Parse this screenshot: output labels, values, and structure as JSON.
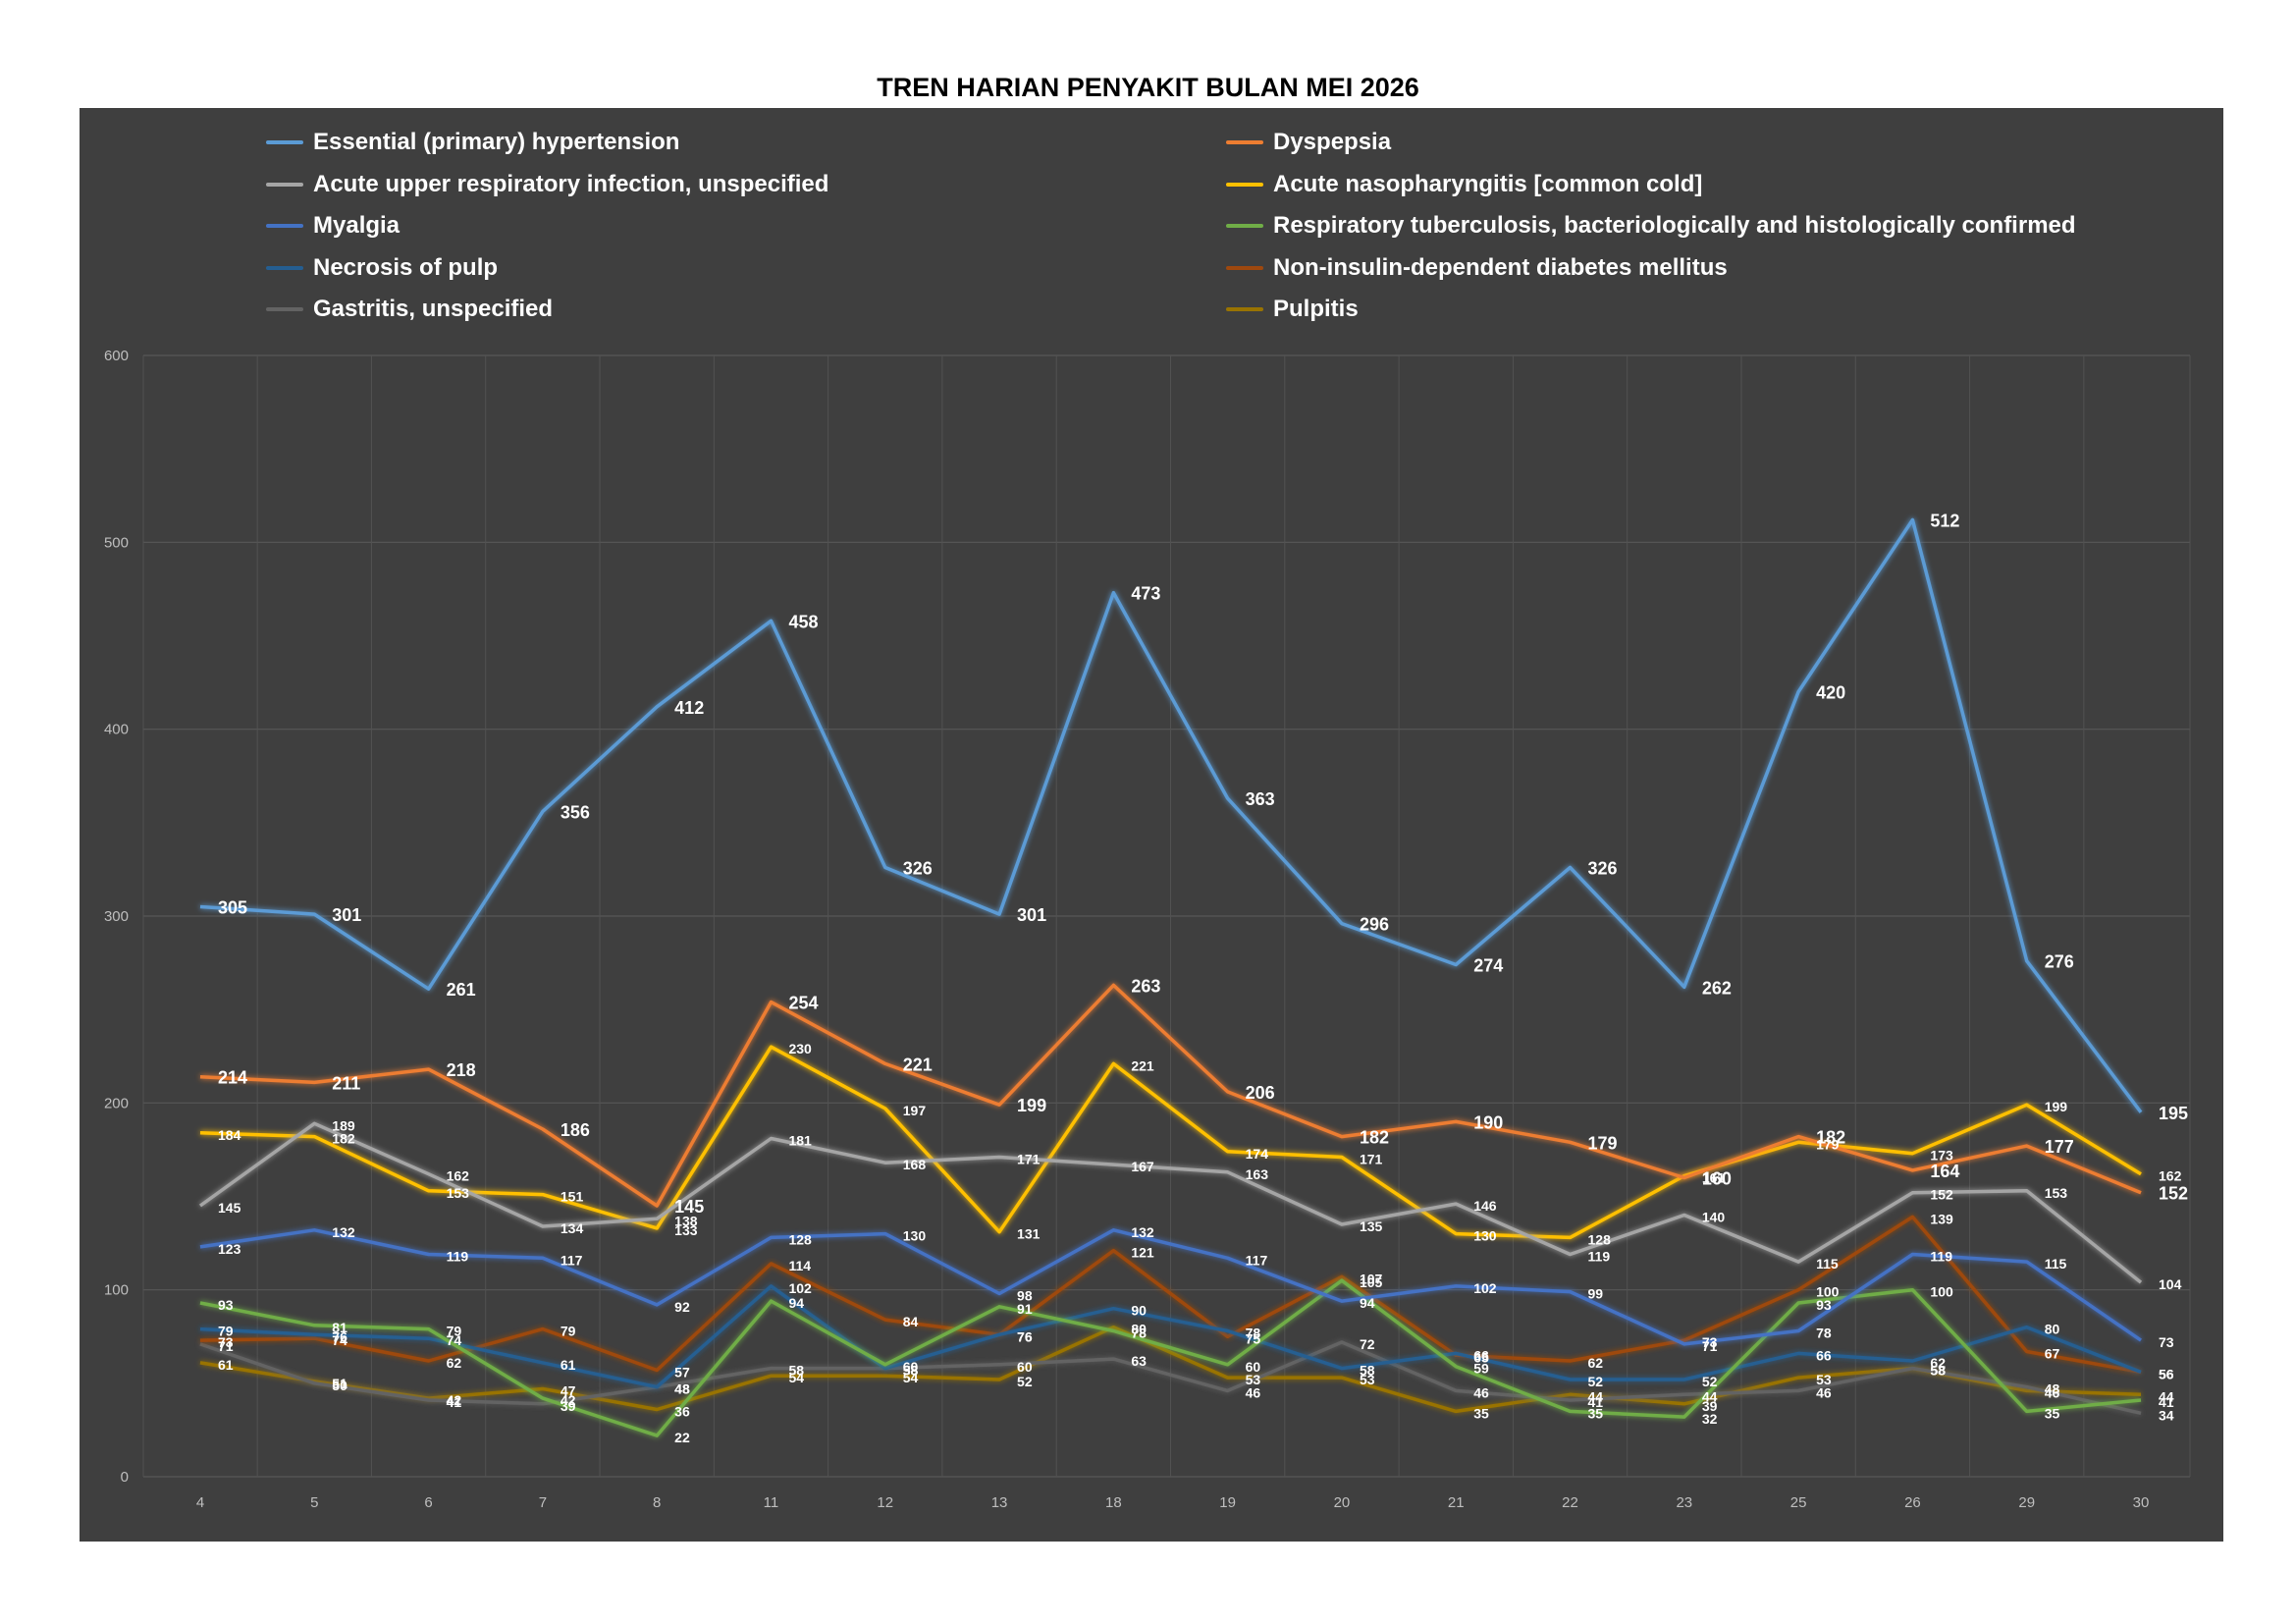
{
  "chart_data": {
    "type": "line",
    "title": "TREN HARIAN PENYAKIT BULAN MEI 2026",
    "xlabel": "",
    "ylabel": "",
    "ylim": [
      0,
      600
    ],
    "yticks": [
      0,
      100,
      200,
      300,
      400,
      500,
      600
    ],
    "grid": true,
    "legend_position": "top",
    "background": "#3f3f3f",
    "categories": [
      "4",
      "5",
      "6",
      "7",
      "8",
      "11",
      "12",
      "13",
      "18",
      "19",
      "20",
      "21",
      "22",
      "23",
      "25",
      "26",
      "29",
      "30"
    ],
    "series": [
      {
        "name": "Essential (primary) hypertension",
        "color": "#5b9bd5",
        "values": [
          305,
          301,
          261,
          356,
          412,
          458,
          326,
          301,
          473,
          363,
          296,
          274,
          326,
          262,
          420,
          512,
          276,
          195
        ]
      },
      {
        "name": "Dyspepsia",
        "color": "#ed7d31",
        "values": [
          214,
          211,
          218,
          186,
          145,
          254,
          221,
          199,
          263,
          206,
          182,
          190,
          179,
          160,
          182,
          164,
          177,
          152
        ]
      },
      {
        "name": "Acute upper respiratory infection, unspecified",
        "color": "#a5a5a5",
        "values": [
          145,
          189,
          162,
          134,
          138,
          181,
          168,
          171,
          167,
          163,
          135,
          146,
          119,
          140,
          115,
          152,
          153,
          104
        ]
      },
      {
        "name": "Acute nasopharyngitis [common cold]",
        "color": "#ffc000",
        "values": [
          184,
          182,
          153,
          151,
          133,
          230,
          197,
          131,
          221,
          174,
          171,
          130,
          128,
          161,
          179,
          173,
          199,
          162
        ]
      },
      {
        "name": "Myalgia",
        "color": "#4472c4",
        "values": [
          123,
          132,
          119,
          117,
          92,
          128,
          130,
          98,
          132,
          117,
          94,
          102,
          99,
          71,
          78,
          119,
          115,
          73
        ]
      },
      {
        "name": "Respiratory tuberculosis, bacteriologically and histologically confirmed",
        "color": "#70ad47",
        "values": [
          93,
          81,
          79,
          42,
          22,
          94,
          60,
          91,
          78,
          60,
          105,
          59,
          35,
          32,
          93,
          100,
          35,
          41
        ]
      },
      {
        "name": "Necrosis of pulp",
        "color": "#255e91",
        "values": [
          79,
          76,
          74,
          61,
          48,
          102,
          58,
          76,
          90,
          78,
          58,
          66,
          52,
          52,
          66,
          62,
          80,
          56
        ]
      },
      {
        "name": "Non-insulin-dependent diabetes mellitus",
        "color": "#9e480e",
        "values": [
          73,
          74,
          62,
          79,
          57,
          114,
          84,
          76,
          121,
          75,
          107,
          65,
          62,
          73,
          100,
          139,
          67,
          56
        ]
      },
      {
        "name": "Gastritis, unspecified",
        "color": "#636363",
        "values": [
          71,
          50,
          41,
          39,
          48,
          58,
          58,
          60,
          63,
          46,
          72,
          46,
          41,
          44,
          46,
          58,
          48,
          34
        ]
      },
      {
        "name": "Pulpitis",
        "color": "#997300",
        "values": [
          61,
          51,
          42,
          47,
          36,
          54,
          54,
          52,
          80,
          53,
          53,
          35,
          44,
          39,
          53,
          58,
          46,
          44
        ]
      }
    ]
  }
}
